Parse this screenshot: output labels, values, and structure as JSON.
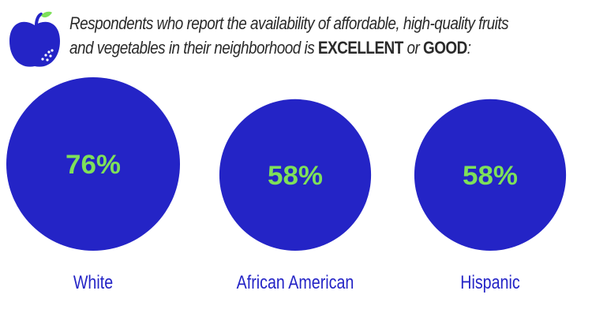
{
  "title": {
    "line1": "Respondents who report the availability of affordable, high-quality fruits",
    "line2_pre": "and vegetables in their neighborhood is ",
    "emph1": "EXCELLENT",
    "mid": " or ",
    "emph2": "GOOD",
    "end": ":"
  },
  "icon": "apple-icon",
  "colors": {
    "circle": "#2424c6",
    "value_text": "#7ee05a",
    "label_text": "#2424c6",
    "title_text": "#2a2a2a",
    "leaf": "#7ee05a"
  },
  "chart_data": {
    "type": "bubble",
    "categories": [
      "White",
      "African American",
      "Hispanic"
    ],
    "values": [
      76,
      58,
      58
    ],
    "value_labels": [
      "76%",
      "58%",
      "58%"
    ],
    "unit": "%"
  }
}
